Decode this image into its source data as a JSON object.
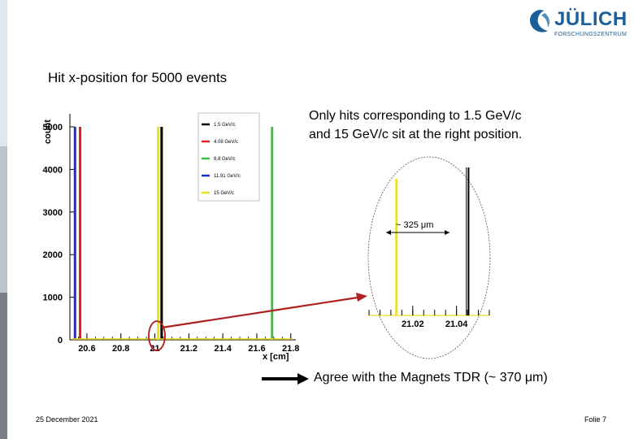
{
  "slide": {
    "title": "Hit x-position for 5000 events",
    "note_line1": "Only hits corresponding to 1.5 GeV/c",
    "note_line2": "and 15 GeV/c sit at the right position.",
    "agree_text": "Agree with the Magnets TDR (~ 370 μm)",
    "footer_date": "25 December 2021",
    "footer_page": "Folie 7"
  },
  "logo": {
    "name": "JÜLICH",
    "subtitle": "FORSCHUNGSZENTRUM",
    "icon": "juelich-logo-icon",
    "color": "#1b5e99"
  },
  "chart_data": [
    {
      "type": "histogram",
      "title": "",
      "xlabel": "x [cm]",
      "ylabel": "count",
      "xlim": [
        20.5,
        21.83
      ],
      "ylim": [
        0,
        5000
      ],
      "xticks": [
        20.6,
        20.8,
        21,
        21.2,
        21.4,
        21.6,
        21.8
      ],
      "yticks": [
        0,
        1000,
        2000,
        3000,
        4000,
        5000
      ],
      "xtick_labels": [
        "20.6",
        "20.8",
        "21",
        "21.2",
        "21.4",
        "21.6",
        "21.8"
      ],
      "ytick_labels": [
        "0",
        "1000",
        "2000",
        "3000",
        "4000",
        "5000"
      ],
      "legend_position": "top-right",
      "series": [
        {
          "name": "1.5 GeV/c",
          "color": "#000000",
          "peaks": [
            {
              "x": 21.04,
              "y": 5000
            }
          ],
          "baseline": 0
        },
        {
          "name": "4.08 GeV/c",
          "color": "#e02020",
          "peaks": [
            {
              "x": 20.56,
              "y": 5000
            }
          ],
          "baseline": 0
        },
        {
          "name": "8.8 GeV/c",
          "color": "#40c040",
          "peaks": [
            {
              "x": 21.69,
              "y": 5000
            }
          ],
          "baseline": 0
        },
        {
          "name": "11.91 GeV/c",
          "color": "#1a2fcc",
          "peaks": [
            {
              "x": 20.53,
              "y": 5000
            }
          ],
          "baseline": 0
        },
        {
          "name": "15 GeV/c",
          "color": "#e8e020",
          "peaks": [
            {
              "x": 21.02,
              "y": 5000
            }
          ],
          "baseline": 30
        }
      ]
    },
    {
      "type": "histogram",
      "title": "",
      "xlim": [
        21.0,
        21.055
      ],
      "xticks": [
        21.02,
        21.04
      ],
      "xtick_labels": [
        "21.02",
        "21.04"
      ],
      "annotation": "~ 325 μm",
      "series": [
        {
          "name": "15 GeV/c",
          "color": "#e8e020",
          "peaks": [
            {
              "x": 21.0125
            }
          ]
        },
        {
          "name": "1.5 GeV/c",
          "color": "#000000",
          "peaks": [
            {
              "x": 21.0455
            }
          ]
        }
      ]
    }
  ]
}
